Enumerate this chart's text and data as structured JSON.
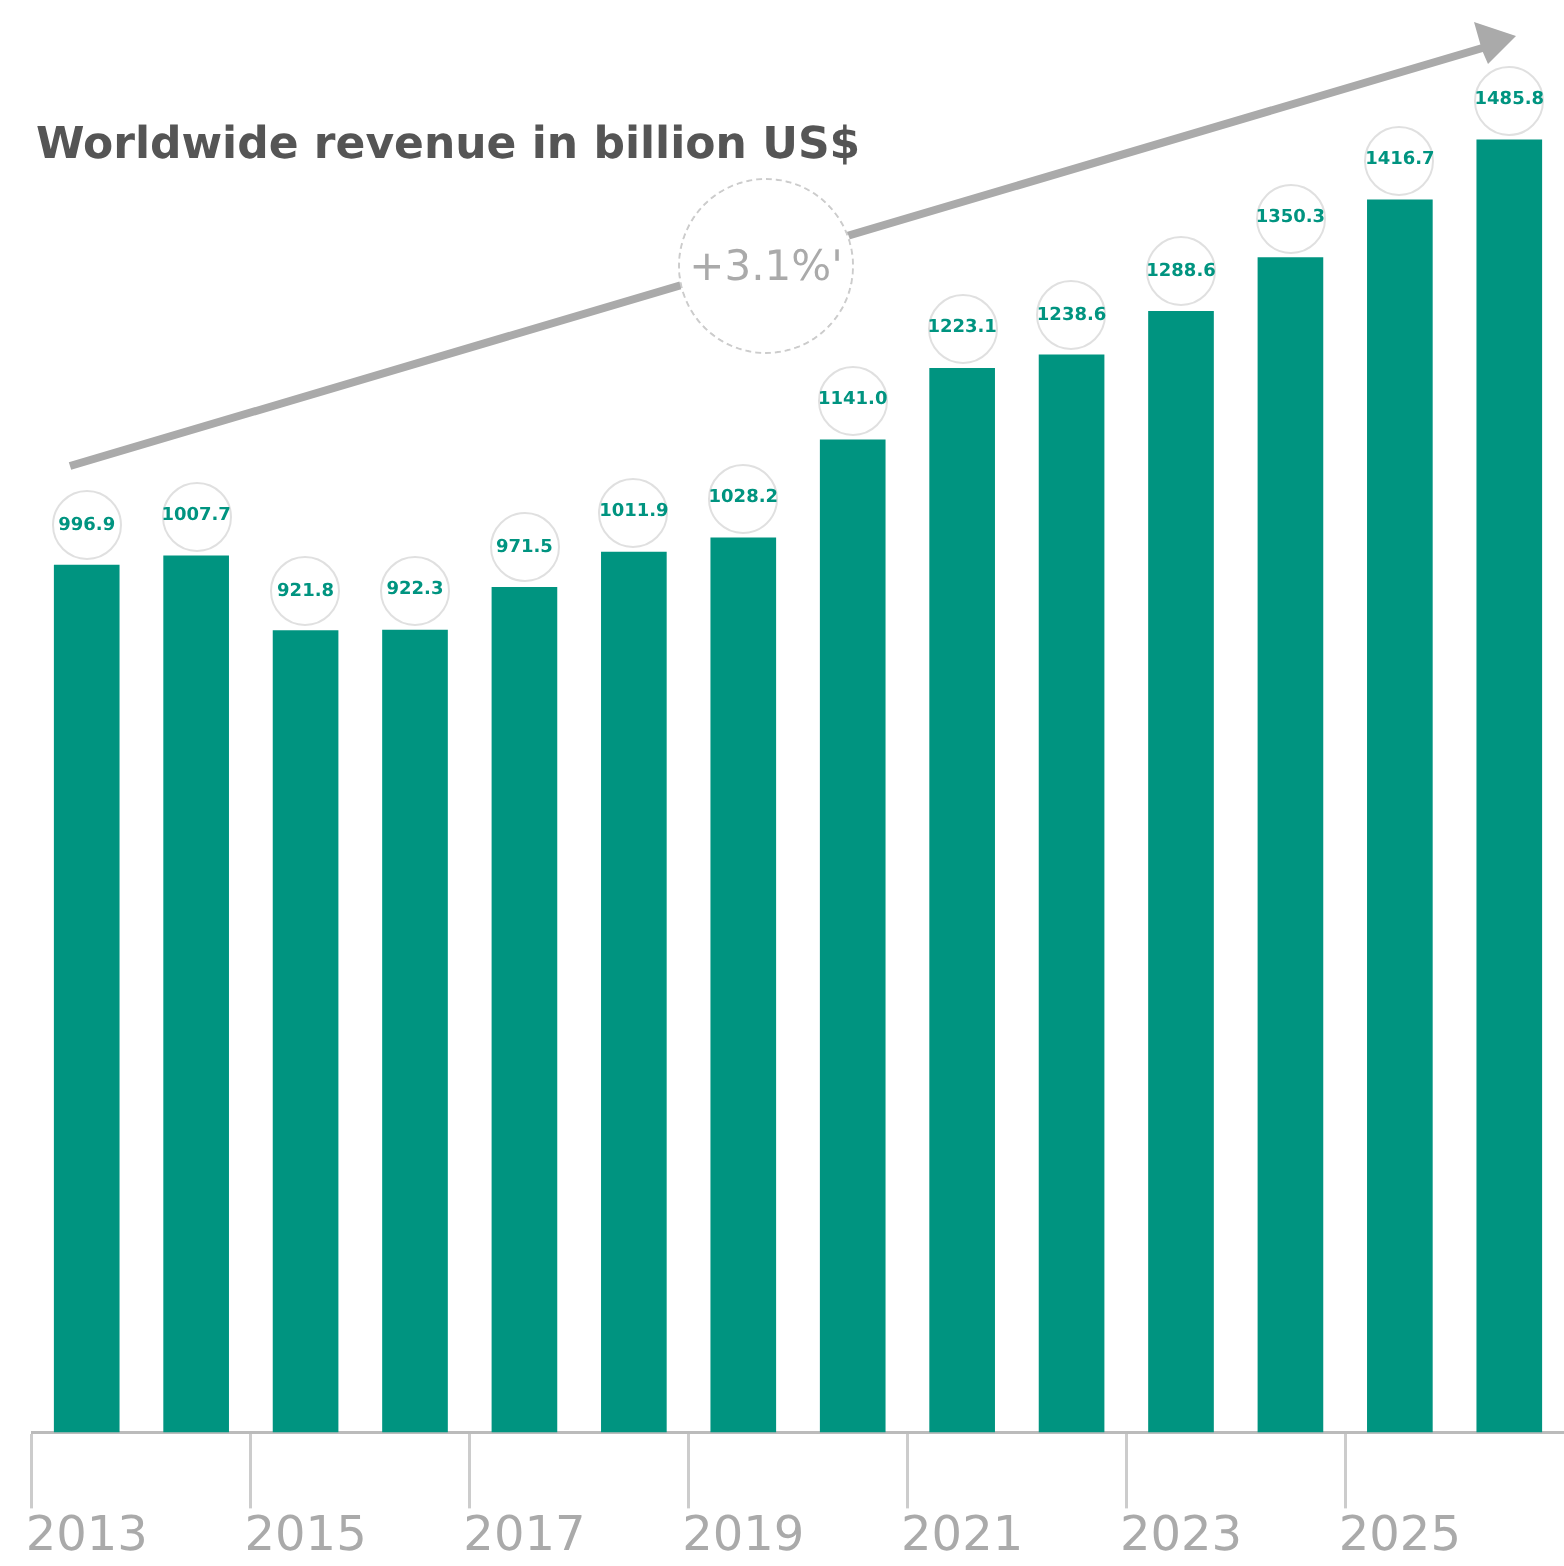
{
  "chart_data": {
    "type": "bar",
    "title": "Worldwide revenue in billion US$",
    "categories": [
      "2013",
      null,
      "2015",
      null,
      "2017",
      null,
      "2019",
      null,
      "2021",
      null,
      "2023",
      null,
      "2025",
      null
    ],
    "values": [
      996.9,
      1007.7,
      921.8,
      922.3,
      971.5,
      1011.9,
      1028.2,
      1141.0,
      1223.1,
      1238.6,
      1288.6,
      1350.3,
      1416.7,
      1485.8
    ],
    "value_labels": [
      "996.9",
      "1007.7",
      "921.8",
      "922.3",
      "971.5",
      "1011.9",
      "1028.2",
      "1141.0",
      "1223.1",
      "1238.6",
      "1288.6",
      "1350.3",
      "1416.7",
      "1485.8"
    ],
    "color": "#009480",
    "tick_labels": "x",
    "grid": false,
    "legend": false,
    "annotations": [
      "+3.1%'"
    ]
  }
}
